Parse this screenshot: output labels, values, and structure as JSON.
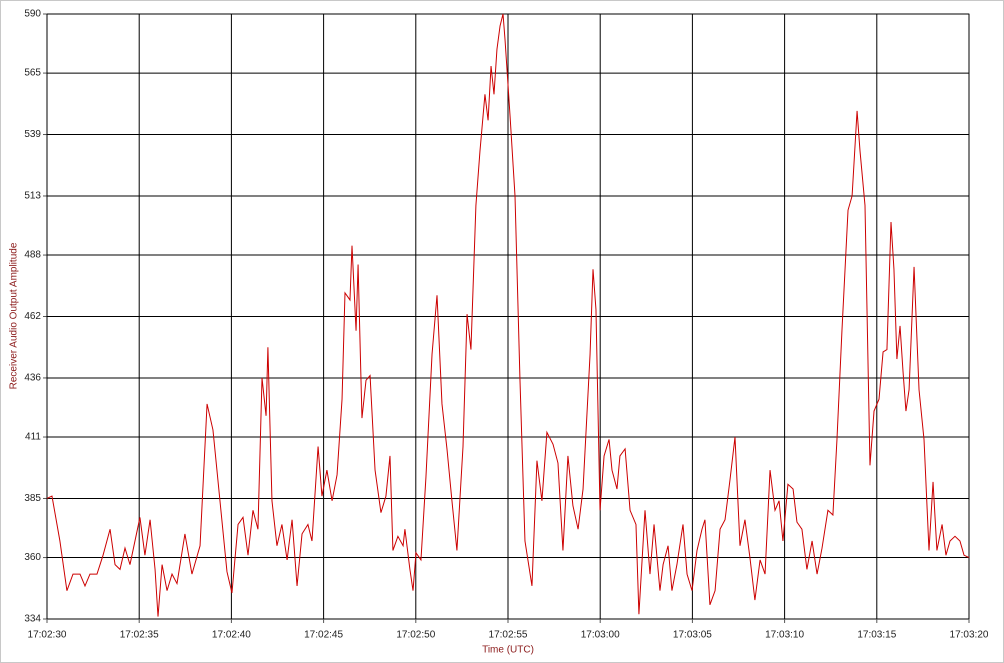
{
  "chart_data": {
    "type": "line",
    "x_label": "Time (UTC)",
    "y_label": "Receiver Audio Output Amplitude",
    "grid": true,
    "xlim": [
      61350,
      61400
    ],
    "xticks": [
      {
        "value": 61350,
        "label": "17:02:30"
      },
      {
        "value": 61355,
        "label": "17:02:35"
      },
      {
        "value": 61360,
        "label": "17:02:40"
      },
      {
        "value": 61365,
        "label": "17:02:45"
      },
      {
        "value": 61370,
        "label": "17:02:50"
      },
      {
        "value": 61375,
        "label": "17:02:55"
      },
      {
        "value": 61380,
        "label": "17:03:00"
      },
      {
        "value": 61385,
        "label": "17:03:05"
      },
      {
        "value": 61390,
        "label": "17:03:10"
      },
      {
        "value": 61395,
        "label": "17:03:15"
      },
      {
        "value": 61400,
        "label": "17:03:20"
      }
    ],
    "ylim": [
      334,
      590
    ],
    "yticks": [
      334,
      360,
      385,
      411,
      436,
      462,
      488,
      513,
      539,
      565,
      590
    ],
    "x": [
      61350.0,
      61350.27,
      61350.7,
      61351.08,
      61351.41,
      61351.79,
      61352.06,
      61352.33,
      61352.71,
      61353.04,
      61353.42,
      61353.69,
      61353.96,
      61354.23,
      61354.5,
      61354.77,
      61355.04,
      61355.31,
      61355.59,
      61355.86,
      61356.02,
      61356.24,
      61356.51,
      61356.78,
      61357.05,
      61357.48,
      61357.86,
      61358.3,
      61358.68,
      61359.0,
      61359.38,
      61359.76,
      61360.03,
      61360.36,
      61360.63,
      61360.9,
      61361.17,
      61361.44,
      61361.66,
      61361.88,
      61361.98,
      61362.2,
      61362.47,
      61362.74,
      61363.02,
      61363.29,
      61363.56,
      61363.83,
      61364.15,
      61364.37,
      61364.7,
      61364.91,
      61365.18,
      61365.46,
      61365.73,
      61366.0,
      61366.16,
      61366.43,
      61366.54,
      61366.76,
      61366.87,
      61367.08,
      61367.3,
      61367.52,
      61367.79,
      61368.11,
      61368.38,
      61368.6,
      61368.76,
      61369.03,
      61369.31,
      61369.41,
      61369.68,
      61369.85,
      61370.01,
      61370.28,
      61370.55,
      61370.88,
      61371.15,
      61371.42,
      61371.69,
      61371.96,
      61372.23,
      61372.56,
      61372.78,
      61372.99,
      61373.26,
      61373.48,
      61373.75,
      61373.92,
      61374.08,
      61374.24,
      61374.4,
      61374.57,
      61374.73,
      61374.84,
      61375.11,
      61375.38,
      61375.65,
      61375.92,
      61376.3,
      61376.57,
      61376.84,
      61377.11,
      61377.44,
      61377.71,
      61377.98,
      61378.25,
      61378.52,
      61378.8,
      61379.07,
      61379.45,
      61379.61,
      61379.77,
      61379.99,
      61380.21,
      61380.48,
      61380.64,
      61380.91,
      61381.07,
      61381.35,
      61381.62,
      61381.94,
      61382.1,
      61382.43,
      61382.7,
      61382.92,
      61383.24,
      61383.41,
      61383.68,
      61383.89,
      61384.16,
      61384.49,
      61384.71,
      61384.98,
      61385.25,
      61385.52,
      61385.68,
      61385.95,
      61386.23,
      61386.5,
      61386.77,
      61387.04,
      61387.31,
      61387.58,
      61387.85,
      61388.12,
      61388.39,
      61388.67,
      61388.94,
      61389.21,
      61389.48,
      61389.7,
      61389.91,
      61390.18,
      61390.46,
      61390.67,
      61390.94,
      61391.21,
      61391.49,
      61391.76,
      61392.03,
      61392.35,
      61392.62,
      61392.84,
      61393.11,
      61393.44,
      61393.66,
      61393.93,
      61394.09,
      61394.36,
      61394.63,
      61394.85,
      61395.12,
      61395.34,
      61395.55,
      61395.77,
      61395.93,
      61396.09,
      61396.26,
      61396.42,
      61396.58,
      61396.75,
      61397.02,
      61397.29,
      61397.56,
      61397.83,
      61398.05,
      61398.26,
      61398.54,
      61398.75,
      61398.97,
      61399.24,
      61399.51,
      61399.73,
      61400.0
    ],
    "series": [
      {
        "color": "#cc0000",
        "values": [
          385,
          386,
          367,
          346,
          353,
          353,
          348,
          353,
          353,
          361,
          372,
          357,
          355,
          364,
          357,
          367,
          377,
          361,
          376,
          355,
          335,
          357,
          346,
          353,
          349,
          370,
          353,
          365,
          425,
          414,
          384,
          354,
          345,
          374,
          377,
          361,
          380,
          372,
          436,
          420,
          449,
          384,
          365,
          374,
          359,
          376,
          348,
          370,
          374,
          367,
          407,
          386,
          397,
          384,
          395,
          427,
          472,
          469,
          492,
          456,
          484,
          419,
          435,
          437,
          397,
          379,
          386,
          403,
          363,
          369,
          365,
          372,
          355,
          346,
          362,
          359,
          394,
          446,
          471,
          425,
          406,
          384,
          363,
          407,
          463,
          448,
          509,
          532,
          556,
          545,
          568,
          556,
          575,
          585,
          590,
          579,
          547,
          513,
          435,
          367,
          348,
          401,
          384,
          413,
          408,
          400,
          363,
          403,
          382,
          372,
          389,
          446,
          482,
          465,
          380,
          403,
          410,
          397,
          389,
          403,
          406,
          380,
          374,
          336,
          380,
          353,
          374,
          346,
          357,
          365,
          346,
          357,
          374,
          353,
          346,
          363,
          372,
          376,
          340,
          346,
          372,
          376,
          393,
          411,
          365,
          376,
          360,
          342,
          359,
          353,
          397,
          380,
          384,
          367,
          391,
          389,
          375,
          372,
          355,
          367,
          353,
          364,
          380,
          378,
          410,
          456,
          507,
          513,
          549,
          532,
          509,
          399,
          422,
          427,
          447,
          448,
          502,
          482,
          444,
          458,
          439,
          422,
          431,
          483,
          431,
          410,
          363,
          392,
          363,
          374,
          361,
          367,
          369,
          367,
          361,
          360
        ]
      }
    ]
  }
}
